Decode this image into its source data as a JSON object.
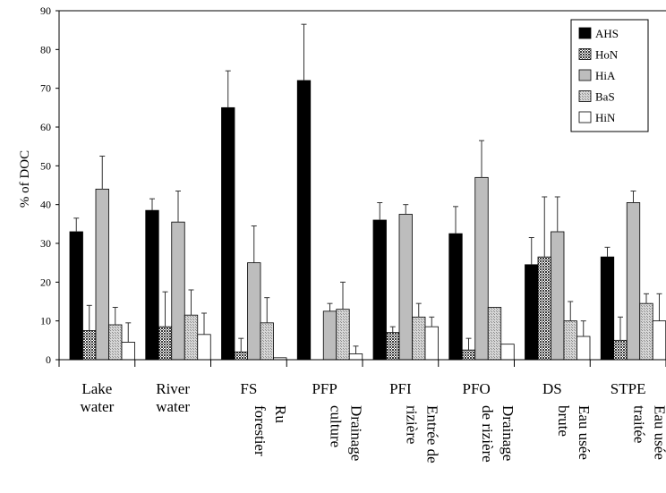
{
  "chart_data": {
    "type": "bar",
    "ylabel": "% of DOC",
    "ylim": [
      0,
      90
    ],
    "yticks": [
      0,
      10,
      20,
      30,
      40,
      50,
      60,
      70,
      80,
      90
    ],
    "grid": false,
    "legend_position": "top-right",
    "categories": [
      {
        "line1": "Lake",
        "line2": "water",
        "vert1": "",
        "vert2": ""
      },
      {
        "line1": "River",
        "line2": "water",
        "vert1": "",
        "vert2": ""
      },
      {
        "line1": "FS",
        "line2": "",
        "vert1": "Ru",
        "vert2": "forestier"
      },
      {
        "line1": "PFP",
        "line2": "",
        "vert1": "Drainage",
        "vert2": "culture"
      },
      {
        "line1": "PFI",
        "line2": "",
        "vert1": "Entrée de",
        "vert2": "rizière"
      },
      {
        "line1": "PFO",
        "line2": "",
        "vert1": "Drainage",
        "vert2": "de rizière"
      },
      {
        "line1": "DS",
        "line2": "",
        "vert1": "Eau usée",
        "vert2": "brute"
      },
      {
        "line1": "STPE",
        "line2": "",
        "vert1": "Eau usée",
        "vert2": "traitée"
      }
    ],
    "series": [
      {
        "name": "AHS",
        "color": "#000000",
        "pattern": "solid",
        "values": [
          33,
          38.5,
          65,
          72,
          36,
          32.5,
          24.5,
          26.5
        ],
        "errors": [
          3.5,
          3,
          9.5,
          14.5,
          4.5,
          7,
          7,
          2.5
        ]
      },
      {
        "name": "HoN",
        "color": "#555555",
        "pattern": "dense-check",
        "values": [
          7.5,
          8.5,
          2,
          0,
          7,
          2.5,
          26.5,
          5
        ],
        "errors": [
          6.5,
          9,
          3.5,
          0,
          1.5,
          3,
          15.5,
          6
        ]
      },
      {
        "name": "HiA",
        "color": "#bdbdbd",
        "pattern": "solid-light",
        "values": [
          44,
          35.5,
          25,
          12.5,
          37.5,
          47,
          33,
          40.5
        ],
        "errors": [
          8.5,
          8,
          9.5,
          2,
          2.5,
          9.5,
          9,
          3
        ]
      },
      {
        "name": "BaS",
        "color": "#a3a3a3",
        "pattern": "light-check",
        "values": [
          9,
          11.5,
          9.5,
          13,
          11,
          13.5,
          10,
          14.5
        ],
        "errors": [
          4.5,
          6.5,
          6.5,
          7,
          3.5,
          0,
          5,
          2.5
        ]
      },
      {
        "name": "HiN",
        "color": "#ffffff",
        "pattern": "open",
        "values": [
          4.5,
          6.5,
          0.5,
          1.5,
          8.5,
          4,
          6,
          10
        ],
        "errors": [
          5,
          5.5,
          0,
          2,
          2.5,
          0,
          4,
          7
        ]
      }
    ]
  }
}
